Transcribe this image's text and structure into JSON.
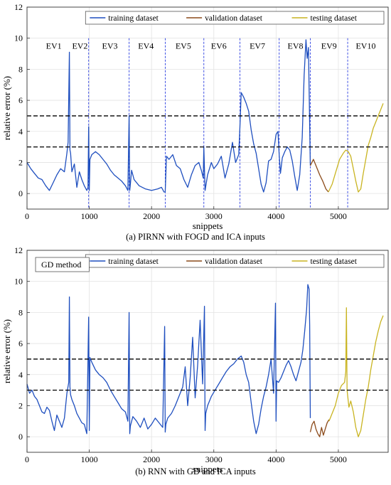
{
  "chart_data": [
    {
      "type": "line",
      "panel": "a",
      "caption": "(a) PIRNN with FOGD and ICA inputs",
      "xlabel": "snippets",
      "ylabel": "relative error (%)",
      "xlim": [
        0,
        5800
      ],
      "ylim": [
        -1,
        12
      ],
      "xticks": [
        "0",
        "1000",
        "2000",
        "3000",
        "4000",
        "5000"
      ],
      "yticks": [
        "0",
        "2",
        "4",
        "6",
        "8",
        "10",
        "12"
      ],
      "grid": true,
      "legend_position": "top-right",
      "series": [
        {
          "name": "training dataset",
          "color": "#1f4fbf",
          "x": [
            0,
            60,
            120,
            180,
            240,
            300,
            360,
            420,
            480,
            540,
            600,
            640,
            660,
            680,
            690,
            700,
            720,
            760,
            800,
            840,
            880,
            920,
            960,
            980,
            990,
            1000,
            1010,
            1040,
            1100,
            1160,
            1220,
            1280,
            1340,
            1400,
            1460,
            1520,
            1580,
            1620,
            1640,
            1650,
            1660,
            1680,
            1720,
            1800,
            1900,
            2000,
            2100,
            2160,
            2200,
            2220,
            2240,
            2280,
            2340,
            2400,
            2460,
            2520,
            2580,
            2640,
            2700,
            2760,
            2800,
            2830,
            2840,
            2860,
            2900,
            2960,
            3000,
            3060,
            3120,
            3180,
            3240,
            3300,
            3350,
            3400,
            3420,
            3440,
            3480,
            3520,
            3560,
            3600,
            3640,
            3680,
            3720,
            3760,
            3800,
            3840,
            3880,
            3920,
            3960,
            4000,
            4030,
            4050,
            4070,
            4100,
            4140,
            4180,
            4220,
            4260,
            4300,
            4340,
            4380,
            4420,
            4450,
            4480,
            4500,
            4520,
            4540,
            4550
          ],
          "y": [
            2.0,
            1.6,
            1.3,
            1.0,
            0.9,
            0.5,
            0.2,
            0.7,
            1.2,
            1.6,
            1.4,
            2.6,
            3.3,
            9.1,
            2.8,
            2.6,
            1.4,
            1.9,
            0.4,
            1.4,
            0.9,
            0.5,
            0.2,
            0.4,
            4.3,
            0.2,
            2.2,
            2.5,
            2.7,
            2.5,
            2.2,
            1.9,
            1.5,
            1.2,
            1.0,
            0.8,
            0.5,
            0.2,
            5.0,
            0.2,
            0.6,
            1.5,
            0.9,
            0.5,
            0.3,
            0.2,
            0.3,
            0.4,
            0.1,
            0.1,
            2.4,
            2.2,
            2.5,
            1.8,
            1.6,
            0.9,
            0.4,
            1.2,
            1.8,
            2.0,
            1.5,
            1.0,
            3.0,
            0.2,
            1.2,
            2.0,
            1.6,
            1.9,
            2.4,
            1.0,
            1.9,
            3.3,
            2.0,
            2.5,
            4.3,
            6.5,
            6.2,
            5.8,
            5.3,
            4.1,
            3.2,
            2.6,
            1.6,
            0.6,
            0.1,
            0.7,
            2.1,
            2.2,
            2.7,
            3.8,
            4.0,
            2.5,
            1.3,
            2.3,
            2.7,
            3.0,
            2.8,
            2.1,
            1.1,
            0.2,
            1.2,
            3.6,
            7.6,
            9.9,
            8.7,
            9.4,
            4.4,
            1.8
          ]
        },
        {
          "name": "validation dataset",
          "color": "#8b4a1a",
          "x": [
            4550,
            4600,
            4650,
            4700,
            4750,
            4800,
            4840
          ],
          "y": [
            1.8,
            2.2,
            1.7,
            1.2,
            0.8,
            0.3,
            0.1
          ]
        },
        {
          "name": "testing dataset",
          "color": "#c9b420",
          "x": [
            4840,
            4900,
            4960,
            5020,
            5080,
            5120,
            5160,
            5200,
            5240,
            5280,
            5320,
            5360,
            5400,
            5440,
            5480,
            5520,
            5560,
            5600,
            5640,
            5680,
            5720
          ],
          "y": [
            0.1,
            0.6,
            1.4,
            2.2,
            2.6,
            2.8,
            2.7,
            2.4,
            1.6,
            0.8,
            0.1,
            0.3,
            1.3,
            2.2,
            3.1,
            3.6,
            4.2,
            4.6,
            5.0,
            5.4,
            5.8
          ]
        }
      ],
      "reference_lines": [
        3,
        5
      ],
      "event_boundaries": [
        990,
        1640,
        2220,
        2840,
        3420,
        4050,
        4550,
        5150
      ],
      "event_labels": [
        {
          "label": "EV1",
          "x": 430
        },
        {
          "label": "EV2",
          "x": 850
        },
        {
          "label": "EV3",
          "x": 1330
        },
        {
          "label": "EV4",
          "x": 1910
        },
        {
          "label": "EV5",
          "x": 2510
        },
        {
          "label": "EV6",
          "x": 3080
        },
        {
          "label": "EV7",
          "x": 3700
        },
        {
          "label": "EV8",
          "x": 4310
        },
        {
          "label": "EV9",
          "x": 4850
        },
        {
          "label": "EV10",
          "x": 5440
        }
      ],
      "event_label_y": 9.5
    },
    {
      "type": "line",
      "panel": "b",
      "caption": "(b) RNN with GD and ICA inputs",
      "annotation": "GD method",
      "xlabel": "snippets",
      "ylabel": "relative error (%)",
      "xlim": [
        0,
        5800
      ],
      "ylim": [
        -1,
        12
      ],
      "xticks": [
        "0",
        "1000",
        "2000",
        "3000",
        "4000",
        "5000"
      ],
      "yticks": [
        "0",
        "2",
        "4",
        "6",
        "8",
        "10",
        "12"
      ],
      "grid": true,
      "legend_position": "top-right",
      "series": [
        {
          "name": "training dataset",
          "color": "#1f4fbf",
          "x": [
            0,
            40,
            80,
            120,
            160,
            200,
            240,
            280,
            320,
            360,
            400,
            440,
            480,
            520,
            560,
            600,
            640,
            670,
            680,
            690,
            700,
            720,
            760,
            800,
            840,
            880,
            920,
            960,
            990,
            1000,
            1010,
            1040,
            1100,
            1160,
            1220,
            1280,
            1340,
            1400,
            1460,
            1520,
            1580,
            1620,
            1640,
            1650,
            1660,
            1700,
            1760,
            1820,
            1880,
            1940,
            2000,
            2060,
            2120,
            2180,
            2210,
            2220,
            2230,
            2260,
            2320,
            2380,
            2440,
            2500,
            2540,
            2580,
            2620,
            2660,
            2700,
            2740,
            2780,
            2820,
            2850,
            2860,
            2870,
            2900,
            2960,
            3020,
            3080,
            3140,
            3200,
            3260,
            3320,
            3380,
            3440,
            3480,
            3520,
            3560,
            3600,
            3640,
            3680,
            3720,
            3760,
            3800,
            3840,
            3880,
            3920,
            3960,
            3990,
            4000,
            4010,
            4040,
            4080,
            4120,
            4160,
            4200,
            4240,
            4280,
            4320,
            4360,
            4400,
            4430,
            4460,
            4490,
            4510,
            4530,
            4540,
            4550
          ],
          "y": [
            3.4,
            2.8,
            3.0,
            2.6,
            2.4,
            2.0,
            1.6,
            1.5,
            1.9,
            1.7,
            1.0,
            0.4,
            1.4,
            1.0,
            0.6,
            1.2,
            2.8,
            3.5,
            9.0,
            3.2,
            2.7,
            2.4,
            2.0,
            1.5,
            1.2,
            0.9,
            0.8,
            0.2,
            7.7,
            0.4,
            5.1,
            4.8,
            4.3,
            4.0,
            3.8,
            3.5,
            3.0,
            2.6,
            2.2,
            1.8,
            1.6,
            1.0,
            8.0,
            0.2,
            0.7,
            1.3,
            1.0,
            0.6,
            1.2,
            0.5,
            0.8,
            1.2,
            0.9,
            0.6,
            7.1,
            0.3,
            0.8,
            1.2,
            1.5,
            2.0,
            2.6,
            3.2,
            4.5,
            2.0,
            3.8,
            6.4,
            2.5,
            4.6,
            7.5,
            3.4,
            8.4,
            0.4,
            1.5,
            2.0,
            2.6,
            3.0,
            3.4,
            3.8,
            4.2,
            4.5,
            4.7,
            5.0,
            5.2,
            4.8,
            4.0,
            3.5,
            2.2,
            1.0,
            0.2,
            0.8,
            1.8,
            2.6,
            3.2,
            4.0,
            5.0,
            2.8,
            8.6,
            1.0,
            3.6,
            3.5,
            3.8,
            4.2,
            4.6,
            4.9,
            4.5,
            4.0,
            3.6,
            4.2,
            4.8,
            5.6,
            6.8,
            8.2,
            9.8,
            9.5,
            7.2,
            1.2
          ]
        },
        {
          "name": "validation dataset",
          "color": "#8b4a1a",
          "x": [
            4550,
            4580,
            4610,
            4640,
            4670,
            4700,
            4730,
            4760,
            4790,
            4820,
            4850
          ],
          "y": [
            0.3,
            0.8,
            1.0,
            0.5,
            0.2,
            0.0,
            0.6,
            0.1,
            0.5,
            0.9,
            1.1
          ]
        },
        {
          "name": "testing dataset",
          "color": "#c9b420",
          "x": [
            4850,
            4900,
            4950,
            5000,
            5050,
            5100,
            5120,
            5130,
            5140,
            5170,
            5200,
            5240,
            5280,
            5320,
            5360,
            5400,
            5440,
            5480,
            5520,
            5560,
            5600,
            5640,
            5680,
            5720
          ],
          "y": [
            1.0,
            1.5,
            2.0,
            2.8,
            3.3,
            3.5,
            4.2,
            8.3,
            3.0,
            1.9,
            2.3,
            1.6,
            0.6,
            0.0,
            0.4,
            1.4,
            2.4,
            3.2,
            4.3,
            5.2,
            6.1,
            6.8,
            7.4,
            7.8
          ]
        }
      ],
      "reference_lines": [
        3,
        5
      ]
    }
  ]
}
